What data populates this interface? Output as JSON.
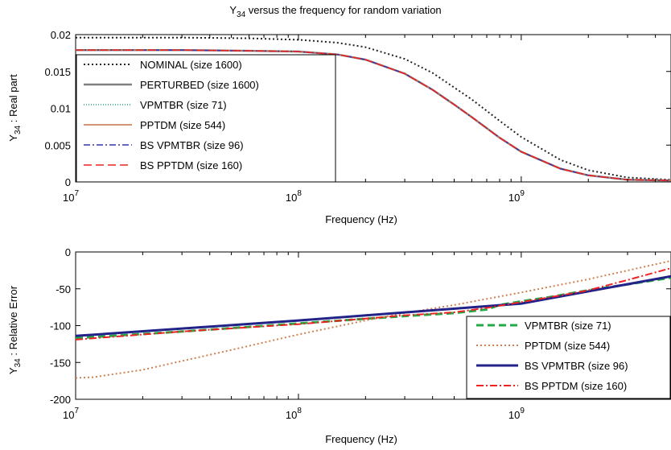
{
  "chart_data": [
    {
      "type": "line",
      "title": "Y34 versus the frequency for random variation",
      "title_main": "Y",
      "title_sub": "34",
      "title_rest": " versus the frequency for random variation",
      "xlabel": "Frequency (Hz)",
      "ylabel_main": "Y",
      "ylabel_sub": "34",
      "ylabel_rest": " : Real part",
      "xscale": "log",
      "xlim": [
        10000000,
        4700000000
      ],
      "ylim": [
        0,
        0.02
      ],
      "yticks": [
        {
          "v": 0,
          "label": "0"
        },
        {
          "v": 0.005,
          "label": "0.005"
        },
        {
          "v": 0.01,
          "label": "0.01"
        },
        {
          "v": 0.015,
          "label": "0.015"
        },
        {
          "v": 0.02,
          "label": "0.02"
        }
      ],
      "xticks": [
        {
          "v": 10000000,
          "base": "10",
          "exp": "7"
        },
        {
          "v": 100000000,
          "base": "10",
          "exp": "8"
        },
        {
          "v": 1000000000,
          "base": "10",
          "exp": "9"
        }
      ],
      "legend_position": "top-left",
      "series": [
        {
          "name": "NOMINAL (size 1600)",
          "color": "#222222",
          "dash": "2,3",
          "width": 2,
          "x": [
            10000000,
            30000000,
            60000000,
            100000000,
            150000000,
            200000000,
            300000000,
            400000000,
            600000000,
            800000000,
            1000000000,
            1500000000,
            2000000000,
            3000000000,
            4700000000
          ],
          "y": [
            0.0196,
            0.0196,
            0.0195,
            0.0193,
            0.0189,
            0.0183,
            0.0167,
            0.0148,
            0.0112,
            0.0083,
            0.0061,
            0.003,
            0.0016,
            0.0006,
            0.0003
          ]
        },
        {
          "name": "PERTURBED (size 1600)",
          "color": "#808080",
          "dash": "",
          "width": 2.5,
          "x": [
            10000000,
            30000000,
            60000000,
            100000000,
            150000000,
            200000000,
            300000000,
            400000000,
            500000000,
            600000000,
            800000000,
            1000000000,
            1500000000,
            2000000000,
            3000000000,
            4700000000
          ],
          "y": [
            0.0179,
            0.0179,
            0.0178,
            0.0177,
            0.0173,
            0.0166,
            0.0147,
            0.0125,
            0.0105,
            0.0088,
            0.006,
            0.0041,
            0.0018,
            0.0009,
            0.0003,
            0.0002
          ]
        },
        {
          "name": "VPMTBR (size 71)",
          "color": "#22aa88",
          "dash": "1,2",
          "width": 1.5,
          "x": [
            10000000,
            30000000,
            60000000,
            100000000,
            150000000,
            200000000,
            300000000,
            400000000,
            500000000,
            600000000,
            800000000,
            1000000000,
            1500000000,
            2000000000,
            3000000000,
            4700000000
          ],
          "y": [
            0.0179,
            0.0179,
            0.0178,
            0.0177,
            0.0173,
            0.0166,
            0.0147,
            0.0125,
            0.0105,
            0.0088,
            0.006,
            0.0041,
            0.0018,
            0.0009,
            0.0003,
            0.0002
          ]
        },
        {
          "name": "PPTDM (size 544)",
          "color": "#c8704a",
          "dash": "",
          "width": 1.5,
          "x": [
            10000000,
            30000000,
            60000000,
            100000000,
            150000000,
            200000000,
            300000000,
            400000000,
            500000000,
            600000000,
            800000000,
            1000000000,
            1500000000,
            2000000000,
            3000000000,
            4700000000
          ],
          "y": [
            0.0179,
            0.0179,
            0.0178,
            0.0177,
            0.0173,
            0.0166,
            0.0147,
            0.0125,
            0.0105,
            0.0088,
            0.006,
            0.0041,
            0.0018,
            0.0009,
            0.0003,
            0.0002
          ]
        },
        {
          "name": "BS VPMTBR (size 96)",
          "color": "#3333aa",
          "dash": "8,3,2,3",
          "width": 1.5,
          "x": [
            10000000,
            30000000,
            60000000,
            100000000,
            150000000,
            200000000,
            300000000,
            400000000,
            500000000,
            600000000,
            800000000,
            1000000000,
            1500000000,
            2000000000,
            3000000000,
            4700000000
          ],
          "y": [
            0.0179,
            0.0179,
            0.0178,
            0.0177,
            0.0173,
            0.0166,
            0.0147,
            0.0125,
            0.0105,
            0.0088,
            0.006,
            0.0041,
            0.0018,
            0.0009,
            0.0003,
            0.0002
          ]
        },
        {
          "name": "BS PPTDM (size 160)",
          "color": "#ee2222",
          "dash": "10,5",
          "width": 1.5,
          "x": [
            10000000,
            30000000,
            60000000,
            100000000,
            150000000,
            200000000,
            300000000,
            400000000,
            500000000,
            600000000,
            800000000,
            1000000000,
            1500000000,
            2000000000,
            3000000000,
            4700000000
          ],
          "y": [
            0.0179,
            0.0179,
            0.0178,
            0.0177,
            0.0173,
            0.0166,
            0.0147,
            0.0125,
            0.0105,
            0.0088,
            0.006,
            0.0041,
            0.0018,
            0.0009,
            0.0003,
            0.0002
          ]
        }
      ]
    },
    {
      "type": "line",
      "title": "",
      "xlabel": "Frequency (Hz)",
      "ylabel_main": "Y",
      "ylabel_sub": "34",
      "ylabel_rest": " : Relative Error",
      "xscale": "log",
      "xlim": [
        10000000,
        4700000000
      ],
      "ylim": [
        -200,
        0
      ],
      "yticks": [
        {
          "v": -200,
          "label": "-200"
        },
        {
          "v": -150,
          "label": "-150"
        },
        {
          "v": -100,
          "label": "-100"
        },
        {
          "v": -50,
          "label": "-50"
        },
        {
          "v": 0,
          "label": "0"
        }
      ],
      "xticks": [
        {
          "v": 10000000,
          "base": "10",
          "exp": "7"
        },
        {
          "v": 100000000,
          "base": "10",
          "exp": "8"
        },
        {
          "v": 1000000000,
          "base": "10",
          "exp": "9"
        }
      ],
      "legend_position": "bottom-right",
      "series": [
        {
          "name": "VPMTBR (size 71)",
          "color": "#22aa44",
          "dash": "9,5",
          "width": 3,
          "x": [
            10000000,
            30000000,
            100000000,
            300000000,
            500000000,
            700000000,
            800000000,
            1000000000,
            1300000000,
            2000000000,
            3000000000,
            4700000000
          ],
          "y": [
            -117,
            -108,
            -97,
            -87,
            -83,
            -78,
            -72,
            -67,
            -62,
            -52,
            -44,
            -35
          ]
        },
        {
          "name": "PPTDM (size 544)",
          "color": "#d08050",
          "dash": "2,3",
          "width": 2,
          "x": [
            10000000,
            12000000,
            20000000,
            50000000,
            100000000,
            200000000,
            300000000,
            500000000,
            1000000000,
            2000000000,
            4700000000
          ],
          "y": [
            -171,
            -170,
            -160,
            -133,
            -112,
            -93,
            -83,
            -72,
            -55,
            -37,
            -12
          ]
        },
        {
          "name": "BS VPMTBR (size 96)",
          "color": "#222288",
          "dash": "",
          "width": 3,
          "x": [
            10000000,
            100000000,
            1000000000,
            4700000000
          ],
          "y": [
            -114,
            -93,
            -70,
            -33
          ]
        },
        {
          "name": "BS PPTDM (size 160)",
          "color": "#ee2222",
          "dash": "9,3,2,3",
          "width": 2,
          "x": [
            10000000,
            30000000,
            100000000,
            300000000,
            500000000,
            700000000,
            1000000000,
            1500000000,
            2000000000,
            3000000000,
            4700000000
          ],
          "y": [
            -119,
            -108,
            -98,
            -86,
            -82,
            -76,
            -68,
            -59,
            -52,
            -38,
            -22
          ]
        }
      ]
    }
  ]
}
